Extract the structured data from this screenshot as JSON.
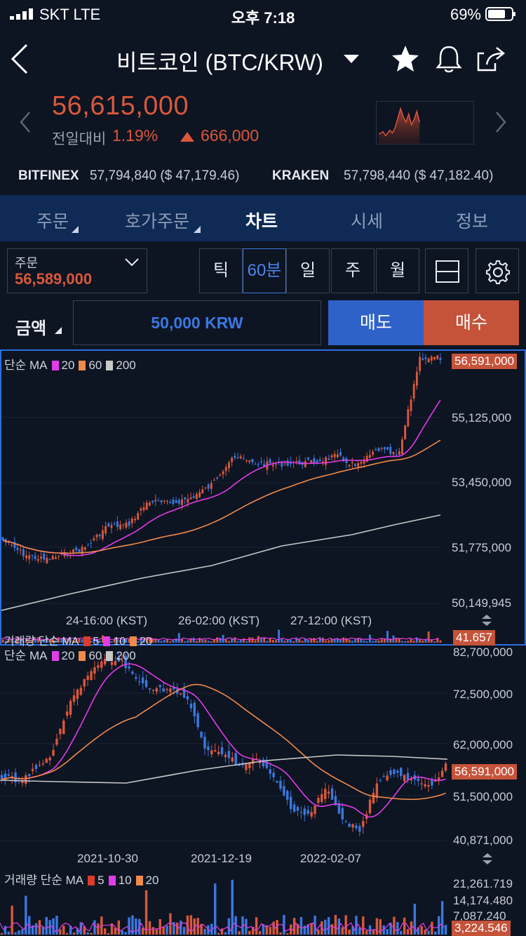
{
  "status": {
    "carrier": "SKT  LTE",
    "time": "오후 7:18",
    "battery": "69%"
  },
  "nav": {
    "title": "비트코인 (BTC/KRW)"
  },
  "ticker": {
    "price": "56,615,000",
    "change_label": "전일대비",
    "change_pct": "1.19%",
    "change_amt": "666,000",
    "accent": "#d9583b"
  },
  "exchanges": [
    {
      "name": "BITFINEX",
      "value": "57,794,840 ($ 47,179.46)"
    },
    {
      "name": "KRAKEN",
      "value": "57,798,440 ($ 47,182.40)"
    }
  ],
  "tabs": [
    "주문",
    "호가주문",
    "차트",
    "시세",
    "정보"
  ],
  "active_tab": "차트",
  "order": {
    "label": "주문",
    "value": "56,589,000"
  },
  "intervals": [
    "틱",
    "60분",
    "일",
    "주",
    "월"
  ],
  "active_interval": "60분",
  "amount": {
    "label": "금액",
    "value": "50,000 KRW"
  },
  "buttons": {
    "sell": "매도",
    "buy": "매수"
  },
  "charts": {
    "main": {
      "ma_label": "단순 MA",
      "ma_periods": [
        "20",
        "60",
        "200"
      ],
      "last_price": "56,591,000",
      "y_ticks": [
        "55,125,000",
        "53,450,000",
        "51,775,000",
        "50,149,945"
      ],
      "x_ticks": [
        "24-16:00 (KST)",
        "26-02:00 (KST)",
        "27-12:00 (KST)"
      ],
      "volume_label": "거래량 단순 MA",
      "volume_periods": [
        "5",
        "10",
        "20"
      ],
      "volume_last": "41.657"
    },
    "daily": {
      "ma_label": "단순 MA",
      "ma_periods": [
        "20",
        "60",
        "200"
      ],
      "top_tick": "82,700,000",
      "last_price": "56,591,000",
      "y_ticks": [
        "72,500,000",
        "62,000,000",
        "51,500,000",
        "40,871,000"
      ],
      "x_ticks": [
        "2021-10-30",
        "2021-12-19",
        "2022-02-07"
      ],
      "volume_label": "거래량 단순 MA",
      "volume_periods": [
        "5",
        "10",
        "20"
      ],
      "volume_ticks": [
        "21,261.719",
        "14,174.480",
        "7,087.240"
      ],
      "volume_last": "3,224.546"
    }
  },
  "colors": {
    "ma20": "#e23ce8",
    "ma60": "#f08a4b",
    "ma200": "#c8c8c8",
    "up": "#d9583b",
    "down": "#3a78e0",
    "ma5": "#e03a2a"
  }
}
